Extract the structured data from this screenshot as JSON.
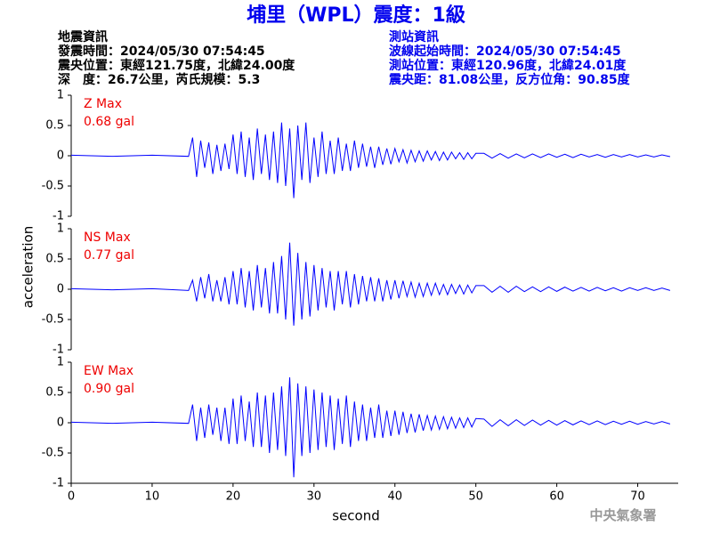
{
  "title": "埔里（WPL）震度：1級",
  "event_info": [
    "地震資訊",
    "發震時間：2024/05/30 07:54:45",
    "震央位置：東經121.75度，北緯24.00度",
    "深　度：26.7公里，芮氏規模：5.3"
  ],
  "station_info": [
    "測站資訊",
    "波線起始時間：2024/05/30 07:54:45",
    "測站位置：東經120.96度，北緯24.01度",
    "震央距：81.08公里，反方位角：90.85度"
  ],
  "ylabel": "acceleration",
  "footer": "中央氣象署",
  "chart_data": [
    {
      "type": "line",
      "label": "Z Max",
      "max_label": "0.68 gal",
      "x": [
        0,
        5,
        10,
        14.5,
        15,
        15.5,
        16,
        16.5,
        17,
        17.5,
        18,
        18.5,
        19,
        19.5,
        20,
        20.5,
        21,
        21.5,
        22,
        22.5,
        23,
        23.5,
        24,
        24.5,
        25,
        25.5,
        26,
        26.5,
        27,
        27.5,
        28,
        28.5,
        29,
        29.5,
        30,
        30.5,
        31,
        31.5,
        32,
        32.5,
        33,
        33.5,
        34,
        34.5,
        35,
        35.5,
        36,
        36.5,
        37,
        37.5,
        38,
        38.5,
        39,
        39.5,
        40,
        40.5,
        41,
        41.5,
        42,
        42.5,
        43,
        43.5,
        44,
        44.5,
        45,
        45.5,
        46,
        46.5,
        47,
        47.5,
        48,
        48.5,
        49,
        49.5,
        50,
        51,
        52,
        53,
        54,
        55,
        56,
        57,
        58,
        59,
        60,
        61,
        62,
        63,
        64,
        65,
        66,
        67,
        68,
        69,
        70,
        71,
        72,
        73,
        74
      ],
      "series": [
        {
          "color": "#0000ff",
          "values": [
            0.01,
            -0.01,
            0.01,
            -0.01,
            0.3,
            -0.35,
            0.25,
            -0.2,
            0.22,
            -0.3,
            0.18,
            -0.25,
            0.2,
            -0.22,
            0.35,
            -0.3,
            0.4,
            -0.35,
            0.3,
            -0.4,
            0.45,
            -0.3,
            0.35,
            -0.4,
            0.4,
            -0.45,
            0.55,
            -0.5,
            0.45,
            -0.7,
            0.5,
            -0.4,
            0.55,
            -0.45,
            0.3,
            -0.35,
            0.4,
            -0.3,
            0.25,
            -0.3,
            0.3,
            -0.25,
            0.2,
            -0.25,
            0.25,
            -0.2,
            0.2,
            -0.18,
            0.15,
            -0.2,
            0.15,
            -0.15,
            0.12,
            -0.14,
            0.12,
            -0.1,
            0.1,
            -0.12,
            0.09,
            -0.1,
            0.08,
            -0.09,
            0.08,
            -0.07,
            0.07,
            -0.08,
            0.06,
            -0.07,
            0.06,
            -0.05,
            0.05,
            -0.06,
            0.05,
            -0.05,
            0.04,
            0.04,
            -0.04,
            0.035,
            -0.04,
            0.03,
            -0.035,
            0.03,
            -0.03,
            0.03,
            -0.025,
            0.025,
            -0.03,
            0.025,
            -0.02,
            0.02,
            -0.025,
            0.02,
            -0.02,
            0.02,
            -0.02,
            0.015,
            -0.02,
            0.015,
            -0.015
          ]
        }
      ],
      "xlim": [
        0,
        75
      ],
      "ylim": [
        -1,
        1
      ],
      "yticks": [
        -1,
        -0.5,
        0,
        0.5,
        1
      ]
    },
    {
      "type": "line",
      "label": "NS Max",
      "max_label": "0.77 gal",
      "x": [
        0,
        5,
        10,
        14.5,
        15,
        15.5,
        16,
        16.5,
        17,
        17.5,
        18,
        18.5,
        19,
        19.5,
        20,
        20.5,
        21,
        21.5,
        22,
        22.5,
        23,
        23.5,
        24,
        24.5,
        25,
        25.5,
        26,
        26.5,
        27,
        27.5,
        28,
        28.5,
        29,
        29.5,
        30,
        30.5,
        31,
        31.5,
        32,
        32.5,
        33,
        33.5,
        34,
        34.5,
        35,
        35.5,
        36,
        36.5,
        37,
        37.5,
        38,
        38.5,
        39,
        39.5,
        40,
        40.5,
        41,
        41.5,
        42,
        42.5,
        43,
        43.5,
        44,
        44.5,
        45,
        45.5,
        46,
        46.5,
        47,
        47.5,
        48,
        48.5,
        49,
        49.5,
        50,
        51,
        52,
        53,
        54,
        55,
        56,
        57,
        58,
        59,
        60,
        61,
        62,
        63,
        64,
        65,
        66,
        67,
        68,
        69,
        70,
        71,
        72,
        73,
        74
      ],
      "series": [
        {
          "color": "#0000ff",
          "values": [
            0.01,
            -0.01,
            0.01,
            -0.02,
            0.15,
            -0.2,
            0.2,
            -0.15,
            0.25,
            -0.2,
            0.15,
            -0.2,
            0.2,
            -0.25,
            0.3,
            -0.25,
            0.35,
            -0.3,
            0.3,
            -0.35,
            0.4,
            -0.3,
            0.35,
            -0.4,
            0.45,
            -0.4,
            0.55,
            -0.5,
            0.77,
            -0.6,
            0.6,
            -0.5,
            0.45,
            -0.45,
            0.4,
            -0.35,
            0.35,
            -0.3,
            0.3,
            -0.35,
            0.3,
            -0.25,
            0.3,
            -0.3,
            0.25,
            -0.25,
            0.22,
            -0.2,
            0.2,
            -0.2,
            0.18,
            -0.2,
            0.15,
            -0.17,
            0.15,
            -0.15,
            0.14,
            -0.12,
            0.12,
            -0.13,
            0.1,
            -0.12,
            0.1,
            -0.1,
            0.1,
            -0.09,
            0.08,
            -0.09,
            0.08,
            -0.07,
            0.07,
            -0.08,
            0.07,
            -0.06,
            0.06,
            0.06,
            -0.05,
            0.05,
            -0.05,
            0.05,
            -0.04,
            0.04,
            -0.04,
            0.04,
            -0.035,
            0.035,
            -0.03,
            0.03,
            -0.03,
            0.03,
            -0.025,
            0.025,
            -0.03,
            0.025,
            -0.02,
            0.025,
            -0.02,
            0.02,
            -0.02
          ]
        }
      ],
      "xlim": [
        0,
        75
      ],
      "ylim": [
        -1,
        1
      ],
      "yticks": [
        -1,
        -0.5,
        0,
        0.5,
        1
      ]
    },
    {
      "type": "line",
      "label": "EW Max",
      "max_label": "0.90 gal",
      "x": [
        0,
        5,
        10,
        14.5,
        15,
        15.5,
        16,
        16.5,
        17,
        17.5,
        18,
        18.5,
        19,
        19.5,
        20,
        20.5,
        21,
        21.5,
        22,
        22.5,
        23,
        23.5,
        24,
        24.5,
        25,
        25.5,
        26,
        26.5,
        27,
        27.5,
        28,
        28.5,
        29,
        29.5,
        30,
        30.5,
        31,
        31.5,
        32,
        32.5,
        33,
        33.5,
        34,
        34.5,
        35,
        35.5,
        36,
        36.5,
        37,
        37.5,
        38,
        38.5,
        39,
        39.5,
        40,
        40.5,
        41,
        41.5,
        42,
        42.5,
        43,
        43.5,
        44,
        44.5,
        45,
        45.5,
        46,
        46.5,
        47,
        47.5,
        48,
        48.5,
        49,
        49.5,
        50,
        51,
        52,
        53,
        54,
        55,
        56,
        57,
        58,
        59,
        60,
        61,
        62,
        63,
        64,
        65,
        66,
        67,
        68,
        69,
        70,
        71,
        72,
        73,
        74
      ],
      "series": [
        {
          "color": "#0000ff",
          "values": [
            0.01,
            -0.01,
            0.01,
            -0.01,
            0.3,
            -0.3,
            0.25,
            -0.25,
            0.3,
            -0.2,
            0.25,
            -0.3,
            0.25,
            -0.35,
            0.4,
            -0.35,
            0.45,
            -0.3,
            0.35,
            -0.4,
            0.5,
            -0.4,
            0.45,
            -0.5,
            0.5,
            -0.45,
            0.6,
            -0.55,
            0.75,
            -0.9,
            0.65,
            -0.55,
            0.6,
            -0.5,
            0.55,
            -0.45,
            0.5,
            -0.4,
            0.45,
            -0.45,
            0.4,
            -0.35,
            0.45,
            -0.4,
            0.35,
            -0.3,
            0.3,
            -0.3,
            0.25,
            -0.25,
            0.3,
            -0.25,
            0.2,
            -0.22,
            0.2,
            -0.2,
            0.18,
            -0.17,
            0.15,
            -0.16,
            0.14,
            -0.13,
            0.12,
            -0.12,
            0.11,
            -0.11,
            0.1,
            -0.1,
            0.09,
            -0.09,
            0.08,
            -0.08,
            0.08,
            -0.07,
            0.07,
            0.06,
            -0.06,
            0.05,
            -0.05,
            0.05,
            -0.045,
            0.045,
            -0.04,
            0.04,
            -0.04,
            0.035,
            -0.035,
            0.03,
            -0.03,
            0.03,
            -0.03,
            0.025,
            -0.025,
            0.025,
            -0.025,
            0.02,
            -0.02,
            0.02,
            -0.02
          ]
        }
      ],
      "xlim": [
        0,
        75
      ],
      "ylim": [
        -1,
        1
      ],
      "yticks": [
        -1,
        -0.5,
        0,
        0.5,
        1
      ],
      "xticks": [
        0,
        10,
        20,
        30,
        40,
        50,
        60,
        70
      ],
      "xlabel": "second"
    }
  ]
}
